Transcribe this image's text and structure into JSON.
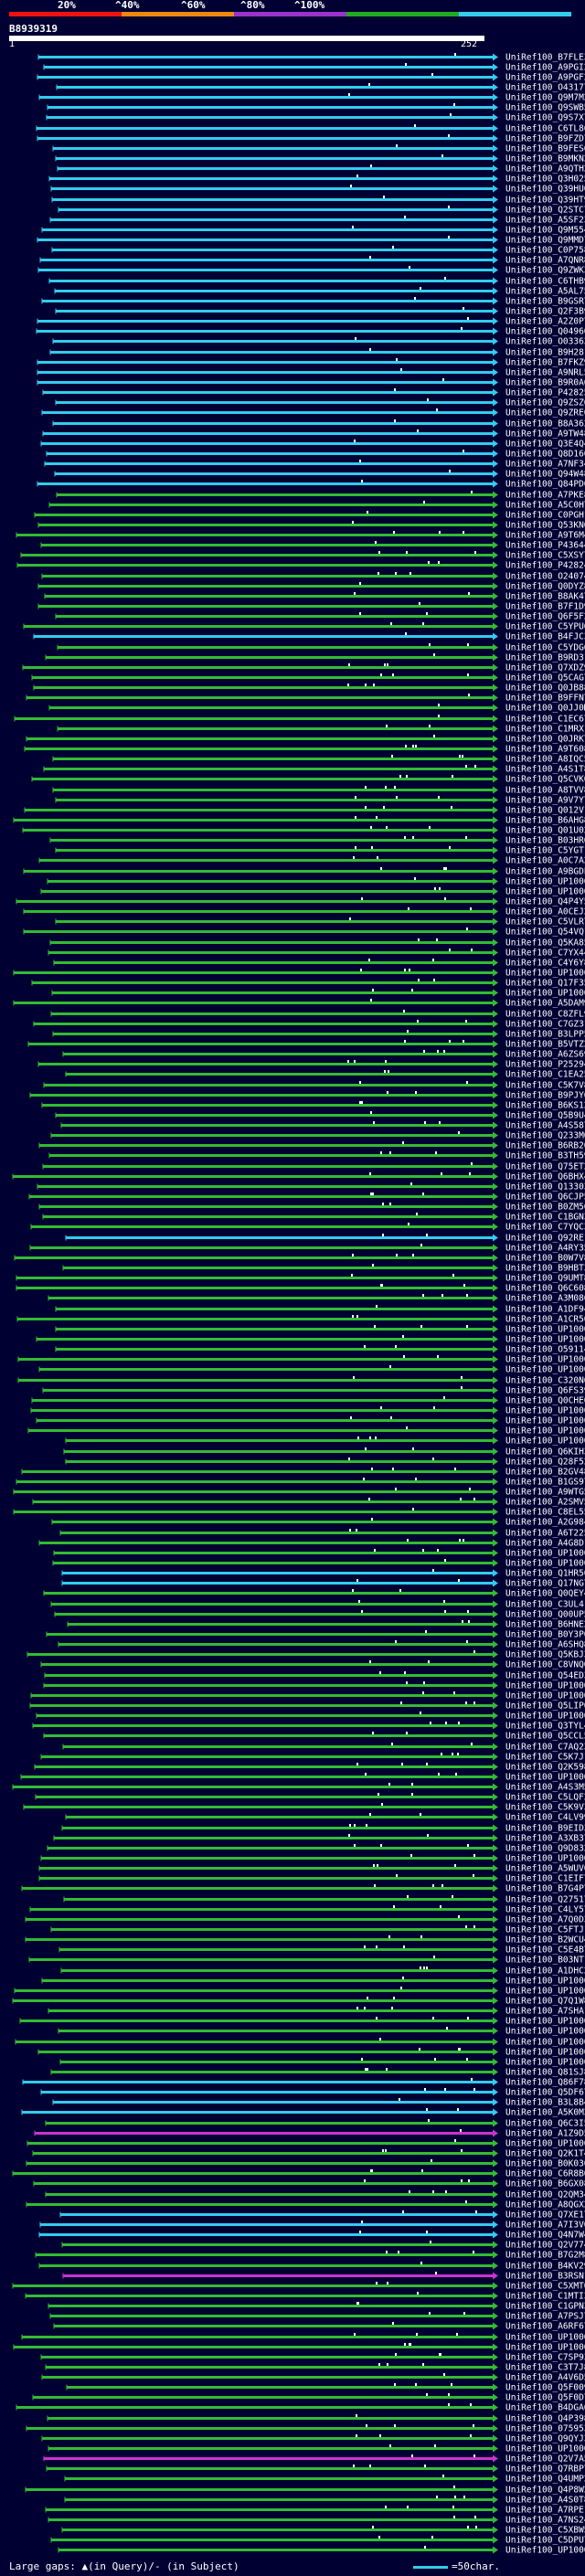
{
  "header": {
    "percent_labels": [
      "20%",
      "^40%",
      "^60%",
      "^80%",
      "^100%"
    ],
    "colors": [
      "#ee1111",
      "#ee8811",
      "#9933cc",
      "#22aa22",
      "#33ccee"
    ],
    "query_id": "B8939319",
    "query_start": "1",
    "query_end": "252"
  },
  "footer": {
    "gaps_text": "Large gaps: ▲(in Query)/- (in Subject)",
    "legend_text": "=50char."
  },
  "chart_data": {
    "type": "alignment-overview",
    "query_length": 252,
    "series": [
      {
        "name": "UniRef100_B7FLE3",
        "color": "cyan"
      },
      {
        "name": "UniRef100_A9PGI2",
        "color": "cyan"
      },
      {
        "name": "UniRef100_A9PGF2",
        "color": "cyan"
      },
      {
        "name": "UniRef100_O43177",
        "color": "cyan"
      },
      {
        "name": "UniRef100_Q9M7M2",
        "color": "cyan"
      },
      {
        "name": "UniRef100_Q9SWB5",
        "color": "cyan"
      },
      {
        "name": "UniRef100_Q9S7X7",
        "color": "cyan"
      },
      {
        "name": "UniRef100_C6TL86",
        "color": "cyan"
      },
      {
        "name": "UniRef100_B9FZD7",
        "color": "cyan"
      },
      {
        "name": "UniRef100_B9FES6",
        "color": "cyan"
      },
      {
        "name": "UniRef100_B9MKN2",
        "color": "cyan"
      },
      {
        "name": "UniRef100_A9QTH2",
        "color": "cyan"
      },
      {
        "name": "UniRef100_Q3H025",
        "color": "cyan"
      },
      {
        "name": "UniRef100_Q39HU0",
        "color": "cyan"
      },
      {
        "name": "UniRef100_Q39HT9",
        "color": "cyan"
      },
      {
        "name": "UniRef100_Q2STC7",
        "color": "cyan"
      },
      {
        "name": "UniRef100_A5SF23",
        "color": "cyan"
      },
      {
        "name": "UniRef100_Q9M554",
        "color": "cyan"
      },
      {
        "name": "UniRef100_Q9MMD7",
        "color": "cyan"
      },
      {
        "name": "UniRef100_C0P758",
        "color": "cyan"
      },
      {
        "name": "UniRef100_A7QNR8",
        "color": "cyan"
      },
      {
        "name": "UniRef100_Q9ZWK3",
        "color": "cyan"
      },
      {
        "name": "UniRef100_C6THB9",
        "color": "cyan"
      },
      {
        "name": "UniRef100_A5AL75",
        "color": "cyan"
      },
      {
        "name": "UniRef100_B9GSR7",
        "color": "cyan"
      },
      {
        "name": "UniRef100_Q2F3B9",
        "color": "cyan"
      },
      {
        "name": "UniRef100_A2Z0P7",
        "color": "cyan"
      },
      {
        "name": "UniRef100_Q04960",
        "color": "cyan"
      },
      {
        "name": "UniRef100_O03363",
        "color": "cyan"
      },
      {
        "name": "UniRef100_B9H281",
        "color": "cyan"
      },
      {
        "name": "UniRef100_B7FKZ9",
        "color": "cyan"
      },
      {
        "name": "UniRef100_A9NRL5",
        "color": "cyan"
      },
      {
        "name": "UniRef100_B9R0A6",
        "color": "cyan"
      },
      {
        "name": "UniRef100_P42825",
        "color": "cyan"
      },
      {
        "name": "UniRef100_Q9ZSZ6",
        "color": "cyan"
      },
      {
        "name": "UniRef100_Q9ZRE0",
        "color": "cyan"
      },
      {
        "name": "UniRef100_B8A362",
        "color": "cyan"
      },
      {
        "name": "UniRef100_A9TW48",
        "color": "cyan"
      },
      {
        "name": "UniRef100_Q3E4Q4",
        "color": "cyan"
      },
      {
        "name": "UniRef100_Q8D160",
        "color": "cyan"
      },
      {
        "name": "UniRef100_A7NF34",
        "color": "cyan"
      },
      {
        "name": "UniRef100_Q94W48",
        "color": "cyan"
      },
      {
        "name": "UniRef100_Q84PD0",
        "color": "cyan"
      },
      {
        "name": "UniRef100_A7PKE8",
        "color": "green"
      },
      {
        "name": "UniRef100_A5C0H7",
        "color": "green"
      },
      {
        "name": "UniRef100_C0PGH1",
        "color": "green"
      },
      {
        "name": "UniRef100_Q53KN6",
        "color": "green"
      },
      {
        "name": "UniRef100_A9T6M4",
        "color": "green"
      },
      {
        "name": "UniRef100_P43644",
        "color": "green"
      },
      {
        "name": "UniRef100_C5XSY7",
        "color": "green"
      },
      {
        "name": "UniRef100_P42824",
        "color": "green"
      },
      {
        "name": "UniRef100_O24074",
        "color": "green"
      },
      {
        "name": "UniRef100_Q0DYZ8",
        "color": "green"
      },
      {
        "name": "UniRef100_B8AK47",
        "color": "green"
      },
      {
        "name": "UniRef100_B7F1D9",
        "color": "green"
      },
      {
        "name": "UniRef100_Q6F5F2",
        "color": "green"
      },
      {
        "name": "UniRef100_C5YPU6",
        "color": "green"
      },
      {
        "name": "UniRef100_B4FJC3",
        "color": "cyan"
      },
      {
        "name": "UniRef100_C5YDG6",
        "color": "green"
      },
      {
        "name": "UniRef100_B9RD31",
        "color": "green"
      },
      {
        "name": "UniRef100_Q7XDZ9",
        "color": "green"
      },
      {
        "name": "UniRef100_Q5CAG7",
        "color": "green"
      },
      {
        "name": "UniRef100_Q0JB88",
        "color": "green"
      },
      {
        "name": "UniRef100_B9FFN7",
        "color": "green"
      },
      {
        "name": "UniRef100_Q0JJ0M",
        "color": "green"
      },
      {
        "name": "UniRef100_C1EC67",
        "color": "green"
      },
      {
        "name": "UniRef100_C1MRX1",
        "color": "green"
      },
      {
        "name": "UniRef100_Q0JRK7",
        "color": "green"
      },
      {
        "name": "UniRef100_A9T608",
        "color": "green"
      },
      {
        "name": "UniRef100_A8IQC5",
        "color": "green"
      },
      {
        "name": "UniRef100_A4S1T8",
        "color": "green"
      },
      {
        "name": "UniRef100_Q5CVK0",
        "color": "green"
      },
      {
        "name": "UniRef100_A8TVV8",
        "color": "green"
      },
      {
        "name": "UniRef100_A9V7Y7",
        "color": "green"
      },
      {
        "name": "UniRef100_Q012V1",
        "color": "green"
      },
      {
        "name": "UniRef100_B6AHG8",
        "color": "green"
      },
      {
        "name": "UniRef100_Q01U02",
        "color": "green"
      },
      {
        "name": "UniRef100_B03HR6",
        "color": "green"
      },
      {
        "name": "UniRef100_C5YGT1",
        "color": "green"
      },
      {
        "name": "UniRef100_A0C7A2",
        "color": "green"
      },
      {
        "name": "UniRef100_A9BGDL",
        "color": "green"
      },
      {
        "name": "UniRef100_UP1000..",
        "color": "green"
      },
      {
        "name": "UniRef100_UP1000..",
        "color": "green"
      },
      {
        "name": "UniRef100_Q4P4Y5",
        "color": "green"
      },
      {
        "name": "UniRef100_A0CEJ2",
        "color": "green"
      },
      {
        "name": "UniRef100_C5VLR7",
        "color": "green"
      },
      {
        "name": "UniRef100_Q54VQ1",
        "color": "green"
      },
      {
        "name": "UniRef100_Q5KA85",
        "color": "green"
      },
      {
        "name": "UniRef100_C7YX44",
        "color": "green"
      },
      {
        "name": "UniRef100_C4Y6Y8",
        "color": "green"
      },
      {
        "name": "UniRef100_UP1000..",
        "color": "green"
      },
      {
        "name": "UniRef100_Q17F35",
        "color": "green"
      },
      {
        "name": "UniRef100_UP1000..",
        "color": "green"
      },
      {
        "name": "UniRef100_A5DAM9",
        "color": "green"
      },
      {
        "name": "UniRef100_C8ZFL9",
        "color": "green"
      },
      {
        "name": "UniRef100_C7GZ31",
        "color": "green"
      },
      {
        "name": "UniRef100_B3LPP5",
        "color": "green"
      },
      {
        "name": "UniRef100_B5VTZ2",
        "color": "green"
      },
      {
        "name": "UniRef100_A6ZS69",
        "color": "green"
      },
      {
        "name": "UniRef100_P25294",
        "color": "green"
      },
      {
        "name": "UniRef100_C1EA25",
        "color": "green"
      },
      {
        "name": "UniRef100_C5K7V8",
        "color": "green"
      },
      {
        "name": "UniRef100_B9PJY6",
        "color": "green"
      },
      {
        "name": "UniRef100_B6KS12",
        "color": "green"
      },
      {
        "name": "UniRef100_Q5B9U4",
        "color": "green"
      },
      {
        "name": "UniRef100_A4S587",
        "color": "green"
      },
      {
        "name": "UniRef100_Q233M0",
        "color": "green"
      },
      {
        "name": "UniRef100_B6RB20",
        "color": "green"
      },
      {
        "name": "UniRef100_B3TH59",
        "color": "green"
      },
      {
        "name": "UniRef100_Q75ET2",
        "color": "green"
      },
      {
        "name": "UniRef100_Q6BHX4",
        "color": "green"
      },
      {
        "name": "UniRef100_Q13303",
        "color": "green"
      },
      {
        "name": "UniRef100_Q6CJP5",
        "color": "green"
      },
      {
        "name": "UniRef100_B0ZM56",
        "color": "green"
      },
      {
        "name": "UniRef100_C1BGN3",
        "color": "green"
      },
      {
        "name": "UniRef100_C7YQC3",
        "color": "green"
      },
      {
        "name": "UniRef100_Q92RE1",
        "color": "cyan"
      },
      {
        "name": "UniRef100_A4RY35",
        "color": "green"
      },
      {
        "name": "UniRef100_B0W7V8",
        "color": "green"
      },
      {
        "name": "UniRef100_B9HBT3",
        "color": "green"
      },
      {
        "name": "UniRef100_Q9UMT8",
        "color": "green"
      },
      {
        "name": "UniRef100_Q6C608",
        "color": "green"
      },
      {
        "name": "UniRef100_A3M086",
        "color": "green"
      },
      {
        "name": "UniRef100_A1DF94",
        "color": "green"
      },
      {
        "name": "UniRef100_A1CR50",
        "color": "green"
      },
      {
        "name": "UniRef100_UP1000..",
        "color": "green"
      },
      {
        "name": "UniRef100_UP1000..",
        "color": "green"
      },
      {
        "name": "UniRef100_O59114",
        "color": "green"
      },
      {
        "name": "UniRef100_UP1000..",
        "color": "green"
      },
      {
        "name": "UniRef100_UP1000..",
        "color": "green"
      },
      {
        "name": "UniRef100_C320N6",
        "color": "green"
      },
      {
        "name": "UniRef100_Q6FS39",
        "color": "green"
      },
      {
        "name": "UniRef100_Q0CHE0",
        "color": "green"
      },
      {
        "name": "UniRef100_UP1000..",
        "color": "green"
      },
      {
        "name": "UniRef100_UP1000..",
        "color": "green"
      },
      {
        "name": "UniRef100_UP1000..",
        "color": "green"
      },
      {
        "name": "UniRef100_UP1000..",
        "color": "green"
      },
      {
        "name": "UniRef100_Q6KIH3",
        "color": "green"
      },
      {
        "name": "UniRef100_Q28F52",
        "color": "green"
      },
      {
        "name": "UniRef100_B2GV48",
        "color": "green"
      },
      {
        "name": "UniRef100_B1GS97",
        "color": "green"
      },
      {
        "name": "UniRef100_A9WTG5",
        "color": "green"
      },
      {
        "name": "UniRef100_A2SMV5",
        "color": "green"
      },
      {
        "name": "UniRef100_C8EL55",
        "color": "green"
      },
      {
        "name": "UniRef100_A2G984",
        "color": "green"
      },
      {
        "name": "UniRef100_A6T225",
        "color": "green"
      },
      {
        "name": "UniRef100_A4G8D1",
        "color": "green"
      },
      {
        "name": "UniRef100_UP1000..",
        "color": "green"
      },
      {
        "name": "UniRef100_UP1000..",
        "color": "green"
      },
      {
        "name": "UniRef100_Q1HR50",
        "color": "cyan"
      },
      {
        "name": "UniRef100_Q17NG7",
        "color": "cyan"
      },
      {
        "name": "UniRef100_Q0QEY4",
        "color": "green"
      },
      {
        "name": "UniRef100_C3UL4",
        "color": "green"
      },
      {
        "name": "UniRef100_Q00UP5",
        "color": "green"
      },
      {
        "name": "UniRef100_B6HNE2",
        "color": "green"
      },
      {
        "name": "UniRef100_B0Y3P0",
        "color": "green"
      },
      {
        "name": "UniRef100_A6SHQ8",
        "color": "green"
      },
      {
        "name": "UniRef100_Q5KBJ3",
        "color": "green"
      },
      {
        "name": "UniRef100_C8VNQ0",
        "color": "green"
      },
      {
        "name": "UniRef100_Q54ED3",
        "color": "green"
      },
      {
        "name": "UniRef100_UP1000..",
        "color": "green"
      },
      {
        "name": "UniRef100_UP1000..",
        "color": "green"
      },
      {
        "name": "UniRef100_Q5LIP0",
        "color": "green"
      },
      {
        "name": "UniRef100_UP1000..",
        "color": "green"
      },
      {
        "name": "UniRef100_Q3TYL4",
        "color": "green"
      },
      {
        "name": "UniRef100_Q5CCL5",
        "color": "green"
      },
      {
        "name": "UniRef100_C7AQ23",
        "color": "green"
      },
      {
        "name": "UniRef100_C5K7J1",
        "color": "green"
      },
      {
        "name": "UniRef100_Q2K598",
        "color": "green"
      },
      {
        "name": "UniRef100_UP1000..",
        "color": "green"
      },
      {
        "name": "UniRef100_A4S3M5",
        "color": "green"
      },
      {
        "name": "UniRef100_C5LQF2",
        "color": "green"
      },
      {
        "name": "UniRef100_C5K9V3",
        "color": "green"
      },
      {
        "name": "UniRef100_C4LV99",
        "color": "green"
      },
      {
        "name": "UniRef100_B9EID3",
        "color": "green"
      },
      {
        "name": "UniRef100_A3XB37",
        "color": "green"
      },
      {
        "name": "UniRef100_Q9D832",
        "color": "green"
      },
      {
        "name": "UniRef100_UP1000..",
        "color": "green"
      },
      {
        "name": "UniRef100_A5WUV0",
        "color": "green"
      },
      {
        "name": "UniRef100_C1EIF7",
        "color": "green"
      },
      {
        "name": "UniRef100_B7G4P7",
        "color": "green"
      },
      {
        "name": "UniRef100_Q27517",
        "color": "green"
      },
      {
        "name": "UniRef100_C4LY57",
        "color": "green"
      },
      {
        "name": "UniRef100_A7Q0D3",
        "color": "green"
      },
      {
        "name": "UniRef100_C5FTJ1",
        "color": "green"
      },
      {
        "name": "UniRef100_B2WCU4",
        "color": "green"
      },
      {
        "name": "UniRef100_C5E4B7",
        "color": "green"
      },
      {
        "name": "UniRef100_B03NT1",
        "color": "green"
      },
      {
        "name": "UniRef100_A1DHC2",
        "color": "green"
      },
      {
        "name": "UniRef100_UP1000..",
        "color": "green"
      },
      {
        "name": "UniRef100_UP1000..",
        "color": "green"
      },
      {
        "name": "UniRef100_Q7Q1W8",
        "color": "green"
      },
      {
        "name": "UniRef100_A7SHA1",
        "color": "green"
      },
      {
        "name": "UniRef100_UP1000..",
        "color": "green"
      },
      {
        "name": "UniRef100_UP1000..",
        "color": "green"
      },
      {
        "name": "UniRef100_UP1000..",
        "color": "green"
      },
      {
        "name": "UniRef100_UP1000..",
        "color": "green"
      },
      {
        "name": "UniRef100_UP1000..",
        "color": "green"
      },
      {
        "name": "UniRef100_Q81SJ8",
        "color": "green"
      },
      {
        "name": "UniRef100_Q86F78",
        "color": "cyan"
      },
      {
        "name": "UniRef100_Q5DF67",
        "color": "cyan"
      },
      {
        "name": "UniRef100_B3L8B4",
        "color": "cyan"
      },
      {
        "name": "UniRef100_A5K0M3",
        "color": "cyan"
      },
      {
        "name": "UniRef100_Q6C3I5",
        "color": "green"
      },
      {
        "name": "UniRef100_A1Z9D5",
        "color": "magenta"
      },
      {
        "name": "UniRef100_UP1000..",
        "color": "green"
      },
      {
        "name": "UniRef100_Q2K1T4",
        "color": "green"
      },
      {
        "name": "UniRef100_B0K030",
        "color": "green"
      },
      {
        "name": "UniRef100_C6R8B0",
        "color": "green"
      },
      {
        "name": "UniRef100_B6GX08",
        "color": "green"
      },
      {
        "name": "UniRef100_Q2QM34",
        "color": "green"
      },
      {
        "name": "UniRef100_A8QGX2",
        "color": "green"
      },
      {
        "name": "UniRef100_Q7XE17",
        "color": "cyan"
      },
      {
        "name": "UniRef100_A7I3V0",
        "color": "cyan"
      },
      {
        "name": "UniRef100_Q4N7W4",
        "color": "cyan"
      },
      {
        "name": "UniRef100_Q2V774",
        "color": "green"
      },
      {
        "name": "UniRef100_B7G2M8",
        "color": "green"
      },
      {
        "name": "UniRef100_B4KV29",
        "color": "green"
      },
      {
        "name": "UniRef100_B3RSN1",
        "color": "magenta"
      },
      {
        "name": "UniRef100_C5XMT0",
        "color": "green"
      },
      {
        "name": "UniRef100_C1MTI3",
        "color": "green"
      },
      {
        "name": "UniRef100_C1GPN3",
        "color": "green"
      },
      {
        "name": "UniRef100_A7PSJ7",
        "color": "green"
      },
      {
        "name": "UniRef100_A6RF67",
        "color": "green"
      },
      {
        "name": "UniRef100_UP1000..",
        "color": "green"
      },
      {
        "name": "UniRef100_UP1000..",
        "color": "green"
      },
      {
        "name": "UniRef100_C7SP93",
        "color": "green"
      },
      {
        "name": "UniRef100_C3T7J8",
        "color": "green"
      },
      {
        "name": "UniRef100_A4V6D5",
        "color": "green"
      },
      {
        "name": "UniRef100_Q5F009",
        "color": "green"
      },
      {
        "name": "UniRef100_Q5F0D7",
        "color": "green"
      },
      {
        "name": "UniRef100_B4DGA6",
        "color": "green"
      },
      {
        "name": "UniRef100_Q4P398",
        "color": "green"
      },
      {
        "name": "UniRef100_075953-2",
        "color": "green"
      },
      {
        "name": "UniRef100_Q9QYJ3",
        "color": "green"
      },
      {
        "name": "UniRef100_UP1000..",
        "color": "green"
      },
      {
        "name": "UniRef100_Q2V7A5",
        "color": "magenta"
      },
      {
        "name": "UniRef100_Q7RBP7",
        "color": "green"
      },
      {
        "name": "UniRef100_Q4UMP2",
        "color": "green"
      },
      {
        "name": "UniRef100_Q4P8W2",
        "color": "green"
      },
      {
        "name": "UniRef100_A4S0T8",
        "color": "green"
      },
      {
        "name": "UniRef100_A7RPE1",
        "color": "green"
      },
      {
        "name": "UniRef100_A7NS24",
        "color": "green"
      },
      {
        "name": "UniRef100_C5XBW5",
        "color": "green"
      },
      {
        "name": "UniRef100_C5DPU7",
        "color": "green"
      },
      {
        "name": "UniRef100_UP1000..",
        "color": "green"
      }
    ]
  }
}
